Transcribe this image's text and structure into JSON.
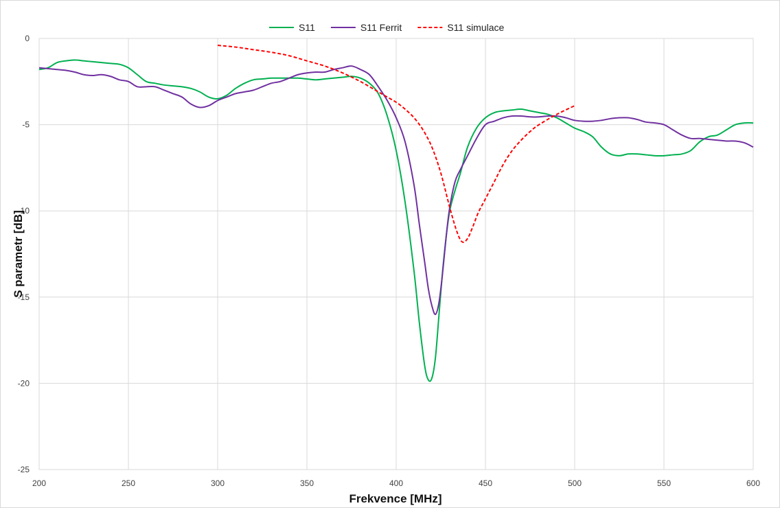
{
  "chart_data": {
    "type": "line",
    "xlabel": "Frekvence [MHz]",
    "ylabel": "S parametr [dB]",
    "xlim": [
      200,
      600
    ],
    "ylim": [
      -25,
      0
    ],
    "x_ticks": [
      "200",
      "250",
      "300",
      "350",
      "400",
      "450",
      "500",
      "550",
      "600"
    ],
    "y_ticks": [
      "0",
      "-5",
      "-10",
      "-15",
      "-20",
      "-25"
    ],
    "grid": true,
    "legend_position": "top-center",
    "series": [
      {
        "name": "S11",
        "color": "#00b050",
        "dash": "solid",
        "x": [
          200,
          205,
          210,
          215,
          220,
          225,
          230,
          235,
          240,
          245,
          250,
          255,
          260,
          265,
          270,
          275,
          280,
          285,
          290,
          295,
          300,
          305,
          310,
          315,
          320,
          325,
          330,
          335,
          340,
          345,
          350,
          355,
          360,
          365,
          370,
          375,
          380,
          385,
          390,
          395,
          400,
          405,
          410,
          413,
          416,
          418,
          420,
          422,
          424,
          426,
          428,
          430,
          433,
          436,
          440,
          445,
          450,
          455,
          460,
          465,
          470,
          475,
          480,
          485,
          490,
          495,
          500,
          505,
          510,
          515,
          520,
          525,
          530,
          535,
          540,
          545,
          550,
          555,
          560,
          565,
          570,
          575,
          580,
          585,
          590,
          595,
          600
        ],
        "y": [
          -1.8,
          -1.7,
          -1.4,
          -1.3,
          -1.25,
          -1.3,
          -1.35,
          -1.4,
          -1.45,
          -1.5,
          -1.7,
          -2.1,
          -2.5,
          -2.6,
          -2.7,
          -2.75,
          -2.8,
          -2.9,
          -3.1,
          -3.4,
          -3.5,
          -3.3,
          -2.9,
          -2.6,
          -2.4,
          -2.35,
          -2.3,
          -2.3,
          -2.3,
          -2.3,
          -2.35,
          -2.4,
          -2.35,
          -2.3,
          -2.25,
          -2.2,
          -2.3,
          -2.6,
          -3.2,
          -4.5,
          -6.5,
          -9.5,
          -13.5,
          -16.5,
          -19.0,
          -19.8,
          -19.7,
          -18.5,
          -16.0,
          -13.5,
          -11.5,
          -10.0,
          -8.8,
          -7.8,
          -6.3,
          -5.2,
          -4.6,
          -4.3,
          -4.2,
          -4.15,
          -4.1,
          -4.2,
          -4.3,
          -4.4,
          -4.6,
          -4.9,
          -5.2,
          -5.4,
          -5.7,
          -6.3,
          -6.7,
          -6.8,
          -6.7,
          -6.7,
          -6.75,
          -6.8,
          -6.8,
          -6.75,
          -6.7,
          -6.5,
          -6.0,
          -5.7,
          -5.6,
          -5.3,
          -5.0,
          -4.9,
          -4.9
        ]
      },
      {
        "name": "S11 Ferrit",
        "color": "#7030a0",
        "dash": "solid",
        "x": [
          200,
          205,
          210,
          215,
          220,
          225,
          230,
          235,
          240,
          245,
          250,
          255,
          260,
          265,
          270,
          275,
          280,
          285,
          290,
          295,
          300,
          305,
          310,
          315,
          320,
          325,
          330,
          335,
          340,
          345,
          350,
          355,
          360,
          365,
          370,
          375,
          380,
          385,
          390,
          395,
          400,
          405,
          410,
          413,
          416,
          418,
          420,
          422,
          424,
          426,
          428,
          430,
          433,
          436,
          440,
          445,
          450,
          455,
          460,
          465,
          470,
          475,
          480,
          485,
          490,
          495,
          500,
          505,
          510,
          515,
          520,
          525,
          530,
          535,
          540,
          545,
          550,
          555,
          560,
          565,
          570,
          575,
          580,
          585,
          590,
          595,
          600
        ],
        "y": [
          -1.7,
          -1.75,
          -1.8,
          -1.85,
          -1.95,
          -2.1,
          -2.15,
          -2.1,
          -2.2,
          -2.4,
          -2.5,
          -2.8,
          -2.8,
          -2.8,
          -3.0,
          -3.2,
          -3.4,
          -3.8,
          -4.0,
          -3.9,
          -3.6,
          -3.4,
          -3.2,
          -3.1,
          -3.0,
          -2.8,
          -2.6,
          -2.5,
          -2.3,
          -2.1,
          -2.0,
          -1.95,
          -1.95,
          -1.8,
          -1.7,
          -1.6,
          -1.8,
          -2.1,
          -2.8,
          -3.6,
          -4.6,
          -6.0,
          -8.5,
          -10.8,
          -13.0,
          -14.5,
          -15.5,
          -16.0,
          -15.3,
          -13.6,
          -11.5,
          -9.8,
          -8.3,
          -7.6,
          -6.8,
          -5.8,
          -5.0,
          -4.8,
          -4.6,
          -4.5,
          -4.5,
          -4.55,
          -4.55,
          -4.5,
          -4.5,
          -4.6,
          -4.75,
          -4.8,
          -4.8,
          -4.75,
          -4.65,
          -4.6,
          -4.6,
          -4.7,
          -4.85,
          -4.9,
          -5.0,
          -5.3,
          -5.6,
          -5.8,
          -5.8,
          -5.85,
          -5.9,
          -5.95,
          -5.95,
          -6.05,
          -6.3
        ]
      },
      {
        "name": "S11 simulace",
        "color": "#ff0000",
        "dash": "dashed",
        "x": [
          300,
          310,
          320,
          330,
          340,
          350,
          360,
          370,
          380,
          390,
          395,
          400,
          405,
          410,
          415,
          420,
          425,
          430,
          434,
          437,
          440,
          443,
          446,
          450,
          455,
          460,
          465,
          470,
          475,
          480,
          490,
          500
        ],
        "y": [
          -0.4,
          -0.5,
          -0.65,
          -0.8,
          -1.0,
          -1.3,
          -1.6,
          -2.0,
          -2.5,
          -3.1,
          -3.4,
          -3.7,
          -4.1,
          -4.6,
          -5.3,
          -6.3,
          -7.8,
          -9.8,
          -11.2,
          -11.8,
          -11.6,
          -10.9,
          -10.1,
          -9.3,
          -8.3,
          -7.3,
          -6.5,
          -5.9,
          -5.4,
          -5.0,
          -4.4,
          -3.9
        ]
      }
    ]
  }
}
